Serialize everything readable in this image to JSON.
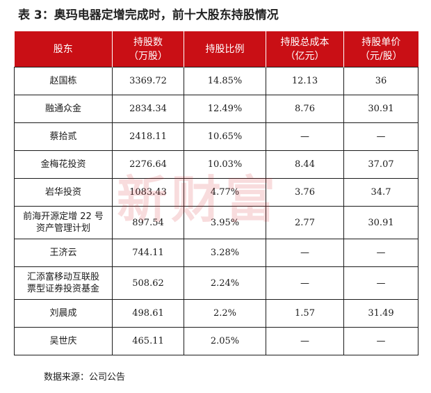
{
  "title": "表 3：奥玛电器定增完成时，前十大股东持股情况",
  "headers": [
    [
      "股东"
    ],
    [
      "持股数",
      "（万股）"
    ],
    [
      "持股比例"
    ],
    [
      "持股总成本",
      "（亿元）"
    ],
    [
      "持股单价",
      "（元/股）"
    ]
  ],
  "rows": [
    {
      "name": [
        "赵国栋"
      ],
      "shares": "3369.72",
      "ratio": "14.85%",
      "cost": "12.13",
      "price": "36"
    },
    {
      "name": [
        "融通众金"
      ],
      "shares": "2834.34",
      "ratio": "12.49%",
      "cost": "8.76",
      "price": "30.91"
    },
    {
      "name": [
        "蔡拾贰"
      ],
      "shares": "2418.11",
      "ratio": "10.65%",
      "cost": "—",
      "price": "—"
    },
    {
      "name": [
        "金梅花投资"
      ],
      "shares": "2276.64",
      "ratio": "10.03%",
      "cost": "8.44",
      "price": "37.07"
    },
    {
      "name": [
        "岩华投资"
      ],
      "shares": "1083.43",
      "ratio": "4.77%",
      "cost": "3.76",
      "price": "34.7"
    },
    {
      "name": [
        "前海开源定增 22 号",
        "资产管理计划"
      ],
      "shares": "897.54",
      "ratio": "3.95%",
      "cost": "2.77",
      "price": "30.91"
    },
    {
      "name": [
        "王济云"
      ],
      "shares": "744.11",
      "ratio": "3.28%",
      "cost": "—",
      "price": "—"
    },
    {
      "name": [
        "汇添富移动互联股",
        "票型证券投资基金"
      ],
      "shares": "508.62",
      "ratio": "2.24%",
      "cost": "—",
      "price": "—"
    },
    {
      "name": [
        "刘晨成"
      ],
      "shares": "498.61",
      "ratio": "2.2%",
      "cost": "1.57",
      "price": "31.49"
    },
    {
      "name": [
        "吴世庆"
      ],
      "shares": "465.11",
      "ratio": "2.05%",
      "cost": "—",
      "price": "—"
    }
  ],
  "watermark": "新财富",
  "source": "数据来源：公司公告"
}
